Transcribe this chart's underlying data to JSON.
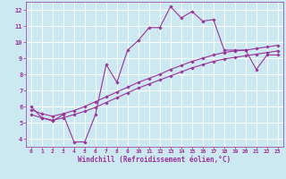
{
  "xlabel": "Windchill (Refroidissement éolien,°C)",
  "bg_color": "#cce8f0",
  "grid_color": "#ffffff",
  "line_color": "#993399",
  "xlim": [
    -0.5,
    23.5
  ],
  "ylim": [
    3.5,
    12.5
  ],
  "xticks": [
    0,
    1,
    2,
    3,
    4,
    5,
    6,
    7,
    8,
    9,
    10,
    11,
    12,
    13,
    14,
    15,
    16,
    17,
    18,
    19,
    20,
    21,
    22,
    23
  ],
  "yticks": [
    4,
    5,
    6,
    7,
    8,
    9,
    10,
    11,
    12
  ],
  "line1_x": [
    0,
    1,
    2,
    3,
    4,
    5,
    6,
    7,
    8,
    9,
    10,
    11,
    12,
    13,
    14,
    15,
    16,
    17,
    18,
    19,
    20,
    21,
    22,
    23
  ],
  "line1_y": [
    6.0,
    5.3,
    5.1,
    5.5,
    3.8,
    3.8,
    5.5,
    8.6,
    7.5,
    9.5,
    10.1,
    10.9,
    10.9,
    12.2,
    11.5,
    11.9,
    11.3,
    11.4,
    9.5,
    9.5,
    9.5,
    8.3,
    9.2,
    9.2
  ],
  "line2_x": [
    0,
    1,
    2,
    3,
    4,
    5,
    6,
    7,
    8,
    9,
    10,
    11,
    12,
    13,
    14,
    15,
    16,
    17,
    18,
    19,
    20,
    21,
    22,
    23
  ],
  "line2_y": [
    5.8,
    5.55,
    5.4,
    5.55,
    5.75,
    6.0,
    6.3,
    6.6,
    6.9,
    7.2,
    7.5,
    7.75,
    8.0,
    8.3,
    8.55,
    8.8,
    9.0,
    9.2,
    9.35,
    9.45,
    9.5,
    9.6,
    9.7,
    9.8
  ],
  "line3_x": [
    0,
    1,
    2,
    3,
    4,
    5,
    6,
    7,
    8,
    9,
    10,
    11,
    12,
    13,
    14,
    15,
    16,
    17,
    18,
    19,
    20,
    21,
    22,
    23
  ],
  "line3_y": [
    5.5,
    5.3,
    5.15,
    5.3,
    5.5,
    5.7,
    5.95,
    6.25,
    6.55,
    6.85,
    7.15,
    7.4,
    7.65,
    7.9,
    8.15,
    8.4,
    8.6,
    8.8,
    8.95,
    9.05,
    9.15,
    9.25,
    9.35,
    9.45
  ]
}
